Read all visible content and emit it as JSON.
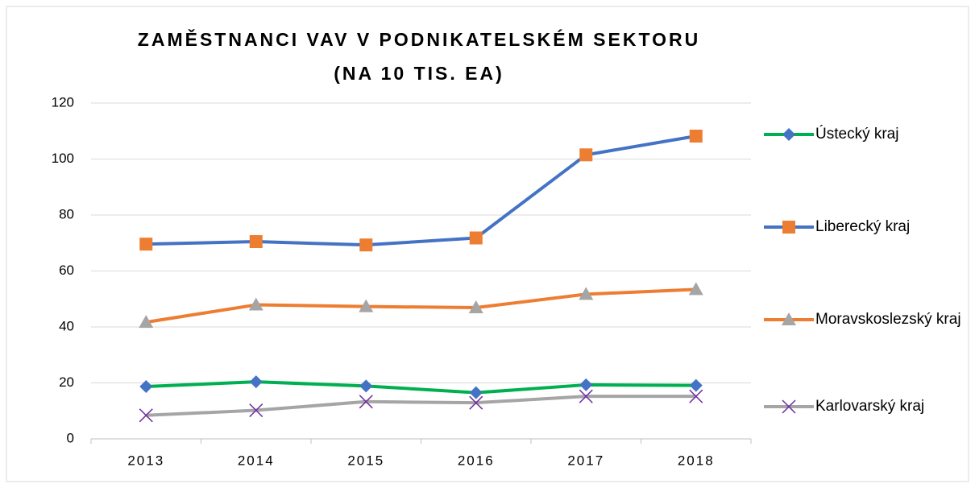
{
  "chart_data": {
    "type": "line",
    "title": [
      "ZAMĚSTNANCI VAV V PODNIKATELSKÉM SEKTORU",
      "(NA 10 TIS. EA)"
    ],
    "categories": [
      "2013",
      "2014",
      "2015",
      "2016",
      "2017",
      "2018"
    ],
    "series": [
      {
        "name": "Ústecký kraj",
        "color": "#00b050",
        "marker": "diamond",
        "marker_color": "#4472c4",
        "values": [
          18.7,
          20.4,
          18.9,
          16.5,
          19.3,
          19.1
        ]
      },
      {
        "name": "Liberecký kraj",
        "color": "#4472c4",
        "marker": "square",
        "marker_color": "#ed7d31",
        "values": [
          69.6,
          70.5,
          69.3,
          71.8,
          101.5,
          108.2
        ]
      },
      {
        "name": "Moravskoslezský kraj",
        "color": "#ed7d31",
        "marker": "triangle",
        "marker_color": "#a5a5a5",
        "values": [
          41.7,
          47.9,
          47.3,
          46.9,
          51.7,
          53.4
        ]
      },
      {
        "name": "Karlovarský kraj",
        "color": "#a5a5a5",
        "marker": "x",
        "marker_color": "#7030a0",
        "values": [
          8.4,
          10.2,
          13.3,
          12.9,
          15.2,
          15.2
        ]
      }
    ],
    "ylim": [
      0,
      120
    ],
    "yticks": [
      0,
      20,
      40,
      60,
      80,
      100,
      120
    ],
    "grid": true,
    "legend": "right"
  }
}
